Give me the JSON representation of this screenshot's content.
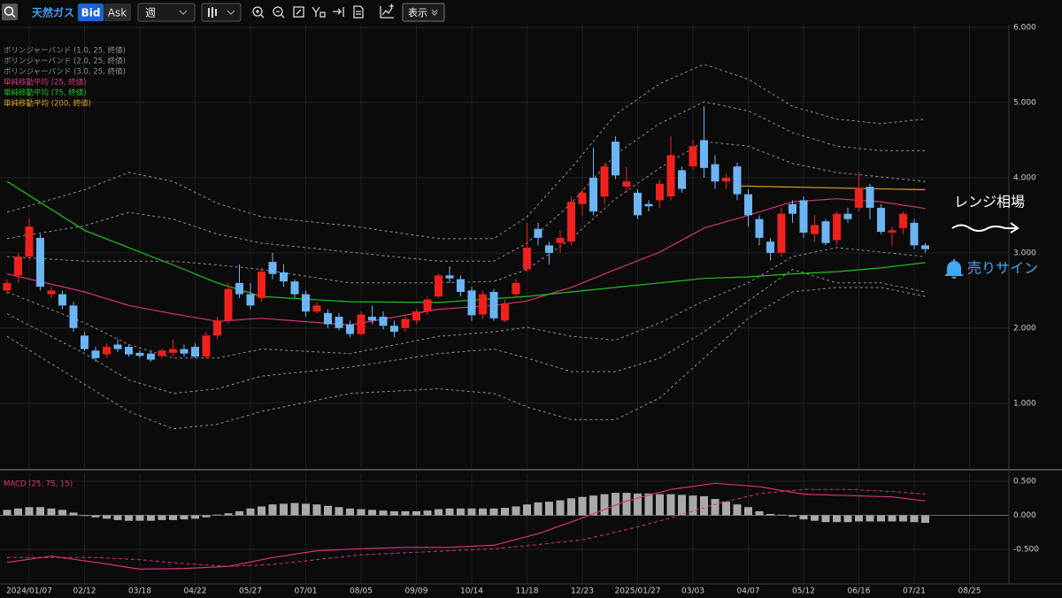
{
  "toolbar": {
    "symbol": "天然ガス",
    "bid": "Bid",
    "ask": "Ask",
    "period": "週",
    "display": "表示"
  },
  "annotations": {
    "range": "レンジ相場",
    "sell": "売りサイン"
  },
  "chart_data": [
    {
      "type": "candlestick",
      "x": [
        -2,
        -1,
        0,
        1,
        2,
        3,
        4,
        5,
        6,
        7,
        8,
        9,
        10,
        11,
        12,
        13,
        14,
        15,
        16,
        17,
        18,
        19,
        20,
        21,
        22,
        23,
        24,
        25,
        26,
        27,
        28,
        29,
        30,
        31,
        32,
        33,
        34,
        35,
        36,
        37,
        38,
        39,
        40,
        41,
        42,
        43,
        44,
        45,
        46,
        47,
        48,
        49,
        50,
        51,
        52,
        53,
        54,
        55,
        56,
        57,
        58,
        59,
        60,
        61,
        62,
        63,
        64,
        65,
        66,
        67,
        68,
        69,
        70,
        71,
        72,
        73,
        74,
        75,
        76,
        77,
        78,
        79,
        80,
        81
      ],
      "open": [
        2.5,
        2.7,
        2.95,
        3.2,
        2.45,
        2.45,
        2.3,
        1.9,
        1.7,
        1.65,
        1.78,
        1.75,
        1.67,
        1.66,
        1.63,
        1.67,
        1.72,
        1.75,
        1.62,
        1.9,
        2.1,
        2.6,
        2.45,
        2.4,
        2.88,
        2.74,
        2.62,
        2.45,
        2.22,
        2.2,
        2.15,
        2.05,
        1.92,
        2.15,
        2.15,
        2.03,
        2.0,
        2.1,
        2.22,
        2.42,
        2.7,
        2.65,
        2.5,
        2.18,
        2.48,
        2.1,
        2.45,
        2.78,
        3.32,
        3.1,
        3.13,
        3.15,
        3.65,
        4.0,
        3.75,
        4.48,
        3.88,
        3.8,
        3.65,
        3.7,
        3.75,
        4.1,
        4.15,
        4.5,
        4.18,
        3.95,
        4.15,
        3.78,
        3.45,
        3.15,
        3.0,
        3.65,
        3.7,
        3.25,
        3.42,
        3.17,
        3.52,
        3.6,
        3.88,
        3.6,
        3.27,
        3.33,
        3.4,
        3.1
      ],
      "high": [
        2.65,
        3.0,
        3.45,
        3.25,
        2.55,
        2.5,
        2.35,
        1.95,
        1.75,
        1.8,
        1.85,
        1.78,
        1.7,
        1.7,
        1.72,
        1.85,
        1.78,
        1.8,
        1.95,
        2.15,
        2.6,
        2.85,
        2.6,
        2.8,
        3.0,
        2.85,
        2.65,
        2.5,
        2.35,
        2.25,
        2.2,
        2.1,
        2.22,
        2.3,
        2.22,
        2.1,
        2.18,
        2.25,
        2.42,
        2.72,
        2.82,
        2.7,
        2.55,
        2.5,
        2.52,
        2.38,
        2.65,
        3.4,
        3.4,
        3.15,
        3.3,
        3.75,
        3.85,
        4.4,
        4.2,
        4.55,
        4.15,
        3.85,
        3.7,
        3.98,
        4.55,
        4.15,
        4.5,
        4.95,
        4.3,
        4.05,
        4.2,
        3.85,
        3.5,
        3.2,
        3.6,
        3.7,
        3.75,
        3.5,
        3.45,
        3.55,
        3.6,
        4.08,
        3.92,
        3.65,
        3.35,
        3.55,
        3.45,
        3.13
      ],
      "low": [
        2.45,
        2.6,
        2.9,
        2.5,
        2.4,
        2.25,
        1.95,
        1.7,
        1.55,
        1.6,
        1.68,
        1.62,
        1.6,
        1.55,
        1.6,
        1.62,
        1.62,
        1.6,
        1.6,
        1.85,
        2.05,
        2.4,
        2.25,
        2.35,
        2.65,
        2.55,
        2.4,
        2.15,
        2.2,
        2.0,
        1.97,
        1.88,
        1.9,
        2.05,
        1.98,
        1.88,
        1.95,
        2.05,
        2.18,
        2.4,
        2.6,
        2.42,
        2.1,
        2.12,
        2.1,
        2.08,
        2.4,
        2.75,
        3.1,
        2.85,
        3.0,
        3.1,
        3.5,
        3.5,
        3.65,
        3.98,
        3.8,
        3.45,
        3.55,
        3.6,
        3.7,
        3.8,
        4.1,
        4.0,
        3.85,
        3.85,
        3.7,
        3.35,
        3.1,
        2.9,
        2.95,
        3.4,
        3.2,
        3.15,
        3.1,
        3.1,
        3.4,
        3.55,
        3.45,
        3.25,
        3.1,
        3.25,
        3.05,
        3.0
      ],
      "close": [
        2.6,
        2.95,
        3.35,
        2.55,
        2.5,
        2.3,
        2.0,
        1.72,
        1.6,
        1.75,
        1.72,
        1.65,
        1.63,
        1.58,
        1.7,
        1.72,
        1.66,
        1.62,
        1.9,
        2.1,
        2.52,
        2.45,
        2.3,
        2.75,
        2.72,
        2.62,
        2.45,
        2.22,
        2.3,
        2.05,
        2.0,
        1.92,
        2.18,
        2.1,
        2.03,
        1.95,
        2.12,
        2.22,
        2.38,
        2.7,
        2.66,
        2.48,
        2.17,
        2.45,
        2.13,
        2.33,
        2.6,
        3.07,
        3.2,
        3.0,
        3.2,
        3.68,
        3.8,
        3.55,
        4.15,
        4.03,
        3.95,
        3.5,
        3.62,
        3.92,
        4.3,
        3.85,
        4.42,
        4.13,
        3.95,
        4.0,
        3.78,
        3.5,
        3.2,
        3.0,
        3.52,
        3.52,
        3.27,
        3.37,
        3.13,
        3.52,
        3.45,
        3.86,
        3.6,
        3.28,
        3.3,
        3.52,
        3.1,
        3.05
      ],
      "up_color": "#f0211c",
      "down_color": "#6cb4f4",
      "xlim": [
        -2.64,
        88.56
      ],
      "xticks": [
        {
          "value": 0,
          "label": "2024/01/07"
        },
        {
          "value": 5,
          "label": "02/12"
        },
        {
          "value": 10,
          "label": "03/18"
        },
        {
          "value": 15,
          "label": "04/22"
        },
        {
          "value": 20,
          "label": "05/27"
        },
        {
          "value": 25,
          "label": "07/01"
        },
        {
          "value": 30,
          "label": "08/05"
        },
        {
          "value": 35,
          "label": "09/09"
        },
        {
          "value": 40,
          "label": "10/14"
        },
        {
          "value": 45,
          "label": "11/18"
        },
        {
          "value": 50,
          "label": "12/23"
        },
        {
          "value": 55,
          "label": "2025/01/27"
        },
        {
          "value": 60,
          "label": "03/03"
        },
        {
          "value": 65,
          "label": "04/07"
        },
        {
          "value": 70,
          "label": "05/12"
        },
        {
          "value": 75,
          "label": "06/16"
        },
        {
          "value": 80,
          "label": "07/21"
        },
        {
          "value": 85,
          "label": "08/25"
        }
      ],
      "ylim": [
        0.15,
        6.035
      ],
      "yticks": [
        {
          "value": 1,
          "label": "1.000"
        },
        {
          "value": 2,
          "label": "2.000"
        },
        {
          "value": 3,
          "label": "3.000"
        },
        {
          "value": 4,
          "label": "4.000"
        },
        {
          "value": 5,
          "label": "5.000"
        },
        {
          "value": 6,
          "label": "6.000"
        }
      ],
      "grid": true,
      "bands": [
        {
          "name": "ボリンジャーバンド (1.0, 25, 終値)",
          "color": "#8c8c8c",
          "x": [
            -2,
            5,
            9,
            13,
            17,
            21,
            29,
            37,
            42,
            45,
            49,
            53,
            57,
            61,
            65,
            69,
            73,
            77,
            81
          ],
          "upper": [
            2.95,
            2.89,
            2.89,
            2.89,
            2.84,
            2.78,
            2.6,
            2.6,
            2.62,
            2.78,
            3.19,
            3.72,
            4.13,
            4.48,
            4.42,
            4.19,
            4.07,
            4.01,
            3.95
          ],
          "lower": [
            2.48,
            2.07,
            1.78,
            1.6,
            1.6,
            1.72,
            1.66,
            1.89,
            1.95,
            2.01,
            1.89,
            1.84,
            2.07,
            2.36,
            2.6,
            2.95,
            3.07,
            3.01,
            2.95
          ]
        },
        {
          "name": "ボリンジャーバンド (2.0, 25, 終値)",
          "color": "#8c8c8c",
          "x": [
            -2,
            5,
            9,
            13,
            17,
            21,
            29,
            37,
            42,
            45,
            49,
            53,
            57,
            61,
            65,
            69,
            73,
            77,
            81
          ],
          "upper": [
            3.19,
            3.36,
            3.54,
            3.45,
            3.25,
            3.13,
            3.01,
            2.89,
            2.89,
            3.13,
            3.66,
            4.31,
            4.72,
            5.01,
            4.89,
            4.6,
            4.42,
            4.36,
            4.36
          ],
          "lower": [
            2.19,
            1.66,
            1.31,
            1.13,
            1.19,
            1.36,
            1.48,
            1.66,
            1.72,
            1.6,
            1.42,
            1.42,
            1.6,
            1.95,
            2.36,
            2.78,
            2.6,
            2.6,
            2.48
          ]
        },
        {
          "name": "ボリンジャーバンド (3.0, 25, 終値)",
          "color": "#8c8c8c",
          "x": [
            -2,
            5,
            9,
            13,
            17,
            21,
            29,
            37,
            42,
            45,
            49,
            53,
            57,
            61,
            65,
            69,
            73,
            77,
            81
          ],
          "upper": [
            3.54,
            3.84,
            4.07,
            3.95,
            3.66,
            3.48,
            3.36,
            3.19,
            3.19,
            3.48,
            4.13,
            4.84,
            5.25,
            5.51,
            5.31,
            4.95,
            4.78,
            4.72,
            4.78
          ],
          "lower": [
            1.89,
            1.25,
            0.89,
            0.66,
            0.72,
            0.89,
            1.13,
            1.19,
            1.13,
            0.95,
            0.78,
            0.78,
            1.07,
            1.6,
            2.13,
            2.48,
            2.54,
            2.54,
            2.42
          ]
        }
      ],
      "series": [
        {
          "name": "単純移動平均 (25, 終値)",
          "color": "#d8327e",
          "x": [
            -2,
            5,
            9,
            13,
            17,
            21,
            29,
            37,
            42,
            45,
            49,
            53,
            57,
            61,
            65,
            69,
            73,
            77,
            81
          ],
          "values": [
            2.72,
            2.48,
            2.3,
            2.19,
            2.09,
            2.13,
            2.04,
            2.25,
            2.3,
            2.36,
            2.54,
            2.78,
            3.01,
            3.33,
            3.5,
            3.68,
            3.72,
            3.68,
            3.59
          ]
        },
        {
          "name": "単純移動平均 (75, 終値)",
          "color": "#1fc31f",
          "x": [
            -2,
            5,
            9,
            13,
            17,
            21,
            29,
            37,
            42,
            45,
            49,
            53,
            57,
            61,
            65,
            69,
            73,
            77,
            81
          ],
          "values": [
            3.95,
            3.3,
            3.07,
            2.84,
            2.6,
            2.42,
            2.35,
            2.34,
            2.39,
            2.42,
            2.48,
            2.54,
            2.6,
            2.66,
            2.68,
            2.72,
            2.75,
            2.8,
            2.87
          ]
        },
        {
          "name": "単純移動平均 (200, 終値)",
          "color": "#e0a020",
          "x": [
            64,
            81
          ],
          "values": [
            3.89,
            3.84
          ]
        }
      ]
    },
    {
      "type": "macd",
      "name": "MACD (25, 75, 15)",
      "color": "#d8327e",
      "hist_color": "#a9a9a9",
      "x": [
        -2,
        -1,
        0,
        1,
        2,
        3,
        4,
        5,
        6,
        7,
        8,
        9,
        10,
        11,
        12,
        13,
        14,
        15,
        16,
        17,
        18,
        19,
        20,
        21,
        22,
        23,
        24,
        25,
        26,
        27,
        28,
        29,
        30,
        31,
        32,
        33,
        34,
        35,
        36,
        37,
        38,
        39,
        40,
        41,
        42,
        43,
        44,
        45,
        46,
        47,
        48,
        49,
        50,
        51,
        52,
        53,
        54,
        55,
        56,
        57,
        58,
        59,
        60,
        61,
        62,
        63,
        64,
        65,
        66,
        67,
        68,
        69,
        70,
        71,
        72,
        73,
        74,
        75,
        76,
        77,
        78,
        79,
        80,
        81
      ],
      "histogram": [
        0.08,
        0.1,
        0.12,
        0.12,
        0.1,
        0.08,
        0.04,
        -0.01,
        -0.03,
        -0.05,
        -0.07,
        -0.08,
        -0.08,
        -0.08,
        -0.07,
        -0.07,
        -0.06,
        -0.05,
        -0.03,
        0.01,
        0.03,
        0.06,
        0.1,
        0.13,
        0.16,
        0.17,
        0.18,
        0.17,
        0.16,
        0.14,
        0.12,
        0.1,
        0.09,
        0.08,
        0.07,
        0.06,
        0.06,
        0.06,
        0.07,
        0.09,
        0.1,
        0.1,
        0.1,
        0.1,
        0.1,
        0.11,
        0.13,
        0.16,
        0.19,
        0.2,
        0.22,
        0.25,
        0.27,
        0.29,
        0.31,
        0.33,
        0.33,
        0.32,
        0.32,
        0.31,
        0.31,
        0.3,
        0.29,
        0.28,
        0.24,
        0.2,
        0.16,
        0.12,
        0.06,
        0.02,
        0.01,
        -0.02,
        -0.06,
        -0.08,
        -0.1,
        -0.1,
        -0.1,
        -0.09,
        -0.09,
        -0.09,
        -0.09,
        -0.09,
        -0.1,
        -0.11
      ],
      "line_x": [
        -2,
        2,
        6,
        10,
        14,
        18,
        22,
        26,
        30,
        34,
        38,
        42,
        46,
        50,
        54,
        58,
        62,
        66,
        70,
        74,
        78,
        81
      ],
      "macd": [
        -0.69,
        -0.6,
        -0.69,
        -0.79,
        -0.78,
        -0.75,
        -0.62,
        -0.52,
        -0.49,
        -0.47,
        -0.47,
        -0.44,
        -0.27,
        -0.04,
        0.21,
        0.38,
        0.47,
        0.42,
        0.31,
        0.29,
        0.27,
        0.21
      ],
      "signal": [
        -0.62,
        -0.62,
        -0.62,
        -0.65,
        -0.71,
        -0.75,
        -0.72,
        -0.65,
        -0.58,
        -0.55,
        -0.52,
        -0.49,
        -0.43,
        -0.36,
        -0.21,
        -0.04,
        0.16,
        0.32,
        0.38,
        0.38,
        0.35,
        0.31
      ],
      "ylim": [
        -1.006,
        0.617
      ],
      "yticks": [
        {
          "value": 0.5,
          "label": "0.500"
        },
        {
          "value": 0,
          "label": "0.000"
        },
        {
          "value": -0.5,
          "label": "-0.500"
        }
      ]
    }
  ]
}
